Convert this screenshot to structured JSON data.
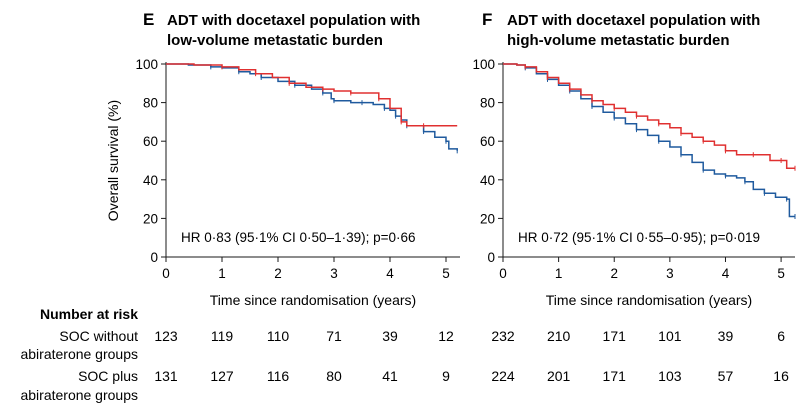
{
  "chart_data": [
    {
      "type": "line",
      "panel_letter": "E",
      "title": "ADT with docetaxel population with low-volume metastatic burden",
      "title_lines": [
        "ADT with docetaxel population with",
        "low-volume metastatic burden"
      ],
      "xlabel": "Time since randomisation (years)",
      "ylabel": "Overall survival (%)",
      "xlim": [
        0,
        5.25
      ],
      "ylim": [
        0,
        100
      ],
      "x_ticks": [
        "0",
        "1",
        "2",
        "3",
        "4",
        "5"
      ],
      "y_ticks": [
        "0",
        "20",
        "40",
        "60",
        "80",
        "100"
      ],
      "annotation": "HR 0·83 (95·1% CI 0·50–1·39); p=0·66",
      "series": [
        {
          "color": "#1f5a9e",
          "points": [
            [
              0,
              100
            ],
            [
              0.4,
              99.5
            ],
            [
              0.8,
              98.5
            ],
            [
              1.0,
              98
            ],
            [
              1.3,
              96
            ],
            [
              1.5,
              95
            ],
            [
              1.7,
              93
            ],
            [
              2.0,
              91
            ],
            [
              2.3,
              89
            ],
            [
              2.6,
              87
            ],
            [
              2.8,
              85
            ],
            [
              2.95,
              82
            ],
            [
              3.0,
              81
            ],
            [
              3.3,
              80
            ],
            [
              3.5,
              80
            ],
            [
              3.7,
              79
            ],
            [
              3.9,
              77
            ],
            [
              4.0,
              76
            ],
            [
              4.1,
              73
            ],
            [
              4.2,
              71
            ],
            [
              4.3,
              68
            ],
            [
              4.5,
              68
            ],
            [
              4.6,
              65
            ],
            [
              4.8,
              62
            ],
            [
              5.0,
              60
            ],
            [
              5.05,
              56
            ],
            [
              5.2,
              55
            ]
          ]
        },
        {
          "color": "#e03030",
          "points": [
            [
              0,
              100
            ],
            [
              0.5,
              99.5
            ],
            [
              1.0,
              98.5
            ],
            [
              1.3,
              97
            ],
            [
              1.6,
              95
            ],
            [
              1.9,
              93
            ],
            [
              2.2,
              90
            ],
            [
              2.5,
              88
            ],
            [
              2.8,
              87
            ],
            [
              3.0,
              86
            ],
            [
              3.3,
              85
            ],
            [
              3.6,
              85
            ],
            [
              3.8,
              82
            ],
            [
              4.0,
              77
            ],
            [
              4.2,
              70
            ],
            [
              4.3,
              68
            ],
            [
              4.6,
              68
            ],
            [
              5.2,
              68
            ]
          ]
        }
      ],
      "risk_table": {
        "x": [
          "0",
          "1",
          "2",
          "3",
          "4",
          "5"
        ],
        "soc_without": [
          "123",
          "119",
          "110",
          "71",
          "39",
          "12"
        ],
        "soc_plus": [
          "131",
          "127",
          "116",
          "80",
          "41",
          "9"
        ]
      }
    },
    {
      "type": "line",
      "panel_letter": "F",
      "title": "ADT with docetaxel population with high-volume metastatic burden",
      "title_lines": [
        "ADT with docetaxel population with",
        "high-volume metastatic burden"
      ],
      "xlabel": "Time since randomisation (years)",
      "ylabel": "",
      "xlim": [
        0,
        5.25
      ],
      "ylim": [
        0,
        100
      ],
      "x_ticks": [
        "0",
        "1",
        "2",
        "3",
        "4",
        "5"
      ],
      "y_ticks": [
        "0",
        "20",
        "40",
        "60",
        "80",
        "100"
      ],
      "annotation": "HR 0·72 (95·1% CI 0·55–0·95); p=0·019",
      "series": [
        {
          "color": "#1f5a9e",
          "points": [
            [
              0,
              100
            ],
            [
              0.25,
              99.5
            ],
            [
              0.4,
              98
            ],
            [
              0.6,
              95
            ],
            [
              0.8,
              92
            ],
            [
              1.0,
              89
            ],
            [
              1.2,
              86
            ],
            [
              1.4,
              82
            ],
            [
              1.6,
              78
            ],
            [
              1.8,
              75
            ],
            [
              2.0,
              72
            ],
            [
              2.2,
              69
            ],
            [
              2.4,
              66
            ],
            [
              2.6,
              63
            ],
            [
              2.8,
              60
            ],
            [
              3.0,
              57
            ],
            [
              3.2,
              53
            ],
            [
              3.4,
              49
            ],
            [
              3.6,
              45
            ],
            [
              3.8,
              43
            ],
            [
              4.0,
              42
            ],
            [
              4.2,
              41
            ],
            [
              4.35,
              39
            ],
            [
              4.5,
              35
            ],
            [
              4.7,
              33
            ],
            [
              4.9,
              31
            ],
            [
              5.1,
              30
            ],
            [
              5.15,
              21
            ],
            [
              5.25,
              21
            ]
          ]
        },
        {
          "color": "#e03030",
          "points": [
            [
              0,
              100
            ],
            [
              0.25,
              99.5
            ],
            [
              0.4,
              98.5
            ],
            [
              0.6,
              96
            ],
            [
              0.8,
              93
            ],
            [
              1.0,
              90
            ],
            [
              1.2,
              87
            ],
            [
              1.4,
              84
            ],
            [
              1.6,
              81
            ],
            [
              1.8,
              79
            ],
            [
              2.0,
              77
            ],
            [
              2.2,
              75
            ],
            [
              2.4,
              73
            ],
            [
              2.6,
              71
            ],
            [
              2.8,
              69
            ],
            [
              3.0,
              67
            ],
            [
              3.2,
              64
            ],
            [
              3.4,
              62
            ],
            [
              3.6,
              60
            ],
            [
              3.8,
              58
            ],
            [
              4.0,
              55
            ],
            [
              4.2,
              53
            ],
            [
              4.5,
              53
            ],
            [
              4.8,
              50
            ],
            [
              5.0,
              50
            ],
            [
              5.1,
              46
            ],
            [
              5.25,
              46
            ]
          ]
        }
      ],
      "risk_table": {
        "x": [
          "0",
          "1",
          "2",
          "3",
          "4",
          "5"
        ],
        "soc_without": [
          "232",
          "210",
          "171",
          "101",
          "39",
          "6"
        ],
        "soc_plus": [
          "224",
          "201",
          "171",
          "103",
          "57",
          "16"
        ]
      }
    }
  ],
  "risk_table_header": {
    "title": "Number at risk",
    "row1_line1": "SOC without",
    "row1_line2": "abiraterone groups",
    "row2_line1": "SOC plus",
    "row2_line2": "abiraterone groups"
  }
}
